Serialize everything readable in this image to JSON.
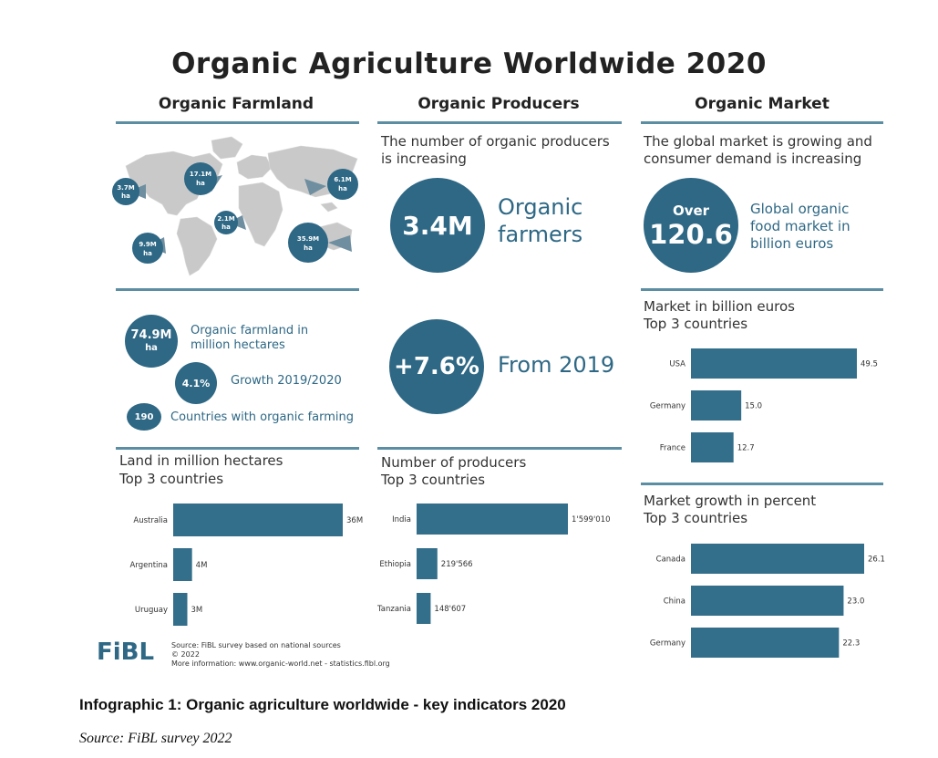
{
  "title": "Organic Agriculture Worldwide 2020",
  "columns": {
    "farmland": "Organic Farmland",
    "producers": "Organic Producers",
    "market": "Organic Market"
  },
  "map": {
    "bubbles": [
      {
        "value": "3.7M",
        "unit": "ha"
      },
      {
        "value": "17.1M",
        "unit": "ha"
      },
      {
        "value": "6.1M",
        "unit": "ha"
      },
      {
        "value": "2.1M",
        "unit": "ha"
      },
      {
        "value": "9.9M",
        "unit": "ha"
      },
      {
        "value": "35.9M",
        "unit": "ha"
      }
    ]
  },
  "farmland_stats": {
    "area_value": "74.9M",
    "area_unit": "ha",
    "area_label": "Organic farmland in million hectares",
    "growth_value": "4.1%",
    "growth_label": "Growth 2019/2020",
    "countries_value": "190",
    "countries_label": "Countries with organic farming"
  },
  "producers": {
    "intro": "The number of organic producers is increasing",
    "count": "3.4M",
    "count_label_1": "Organic",
    "count_label_2": "farmers",
    "growth": "+7.6%",
    "growth_label": "From 2019"
  },
  "market": {
    "intro": "The global market is growing and consumer demand is increasing",
    "over": "Over",
    "value": "120.6",
    "label": "Global organic food market in billion euros"
  },
  "chart_data": [
    {
      "type": "bar",
      "orientation": "horizontal",
      "title": "Land in million hectares",
      "subtitle": "Top 3 countries",
      "categories": [
        "Australia",
        "Argentina",
        "Uruguay"
      ],
      "values": [
        36,
        4,
        3
      ],
      "value_labels": [
        "36M",
        "4M",
        "3M"
      ],
      "color": "#336e8a"
    },
    {
      "type": "bar",
      "orientation": "horizontal",
      "title": "Number of producers",
      "subtitle": "Top 3 countries",
      "categories": [
        "India",
        "Ethiopia",
        "Tanzania"
      ],
      "values": [
        1599010,
        219566,
        148607
      ],
      "value_labels": [
        "1'599'010",
        "219'566",
        "148'607"
      ],
      "color": "#336e8a"
    },
    {
      "type": "bar",
      "orientation": "horizontal",
      "title": "Market in billion euros",
      "subtitle": "Top 3 countries",
      "categories": [
        "USA",
        "Germany",
        "France"
      ],
      "values": [
        49.5,
        15.0,
        12.7
      ],
      "value_labels": [
        "49.5",
        "15.0",
        "12.7"
      ],
      "color": "#336e8a"
    },
    {
      "type": "bar",
      "orientation": "horizontal",
      "title": "Market growth in percent",
      "subtitle": "Top 3 countries",
      "categories": [
        "Canada",
        "China",
        "Germany"
      ],
      "values": [
        26.1,
        23.0,
        22.3
      ],
      "value_labels": [
        "26.1",
        "23.0",
        "22.3"
      ],
      "color": "#336e8a"
    }
  ],
  "footer": {
    "logo": "FiBL",
    "source_line_1": "Source: FiBL survey based on national sources",
    "source_line_2": "© 2022",
    "source_line_3": "More information: www.organic-world.net - statistics.fibl.org"
  },
  "caption": "Infographic 1: Organic agriculture worldwide - key indicators 2020",
  "source": "Source: FiBL survey 2022"
}
